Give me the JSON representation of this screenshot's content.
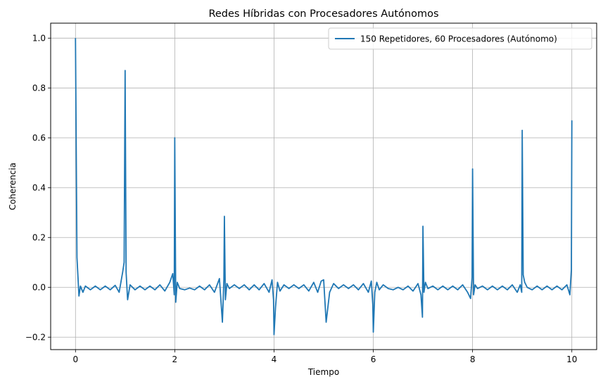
{
  "chart_data": {
    "type": "line",
    "title": "Redes Híbridas con Procesadores Autónomos",
    "xlabel": "Tiempo",
    "ylabel": "Coherencia",
    "xlim": [
      -0.5,
      10.5
    ],
    "ylim": [
      -0.25,
      1.06
    ],
    "xticks": [
      0,
      2,
      4,
      6,
      8,
      10
    ],
    "xtick_labels": [
      "0",
      "2",
      "4",
      "6",
      "8",
      "10"
    ],
    "yticks": [
      -0.2,
      0.0,
      0.2,
      0.4,
      0.6,
      0.8,
      1.0
    ],
    "ytick_labels": [
      "−0.2",
      "0.0",
      "0.2",
      "0.4",
      "0.6",
      "0.8",
      "1.0"
    ],
    "grid": true,
    "legend_position": "top-right",
    "series": [
      {
        "name": "150 Repetidores, 60 Procesadores (Autónomo)",
        "color": "#1f77b4",
        "x": [
          0,
          0.03,
          0.07,
          0.1,
          0.15,
          0.2,
          0.3,
          0.4,
          0.5,
          0.6,
          0.7,
          0.8,
          0.88,
          0.95,
          0.98,
          1.0,
          1.02,
          1.05,
          1.1,
          1.2,
          1.3,
          1.4,
          1.5,
          1.6,
          1.7,
          1.8,
          1.9,
          1.96,
          1.99,
          2.0,
          2.02,
          2.05,
          2.1,
          2.2,
          2.3,
          2.4,
          2.5,
          2.6,
          2.7,
          2.8,
          2.9,
          2.96,
          2.99,
          3.0,
          3.02,
          3.05,
          3.1,
          3.2,
          3.3,
          3.4,
          3.5,
          3.6,
          3.7,
          3.8,
          3.9,
          3.96,
          3.99,
          4.0,
          4.03,
          4.07,
          4.12,
          4.2,
          4.3,
          4.4,
          4.5,
          4.6,
          4.7,
          4.8,
          4.88,
          4.95,
          5.0,
          5.05,
          5.12,
          5.2,
          5.3,
          5.4,
          5.5,
          5.6,
          5.7,
          5.8,
          5.9,
          5.96,
          5.99,
          6.0,
          6.03,
          6.07,
          6.12,
          6.2,
          6.3,
          6.4,
          6.5,
          6.6,
          6.7,
          6.8,
          6.9,
          6.96,
          6.99,
          7.0,
          7.02,
          7.05,
          7.1,
          7.2,
          7.3,
          7.4,
          7.5,
          7.6,
          7.7,
          7.8,
          7.9,
          7.96,
          7.99,
          8.0,
          8.02,
          8.05,
          8.1,
          8.2,
          8.3,
          8.4,
          8.5,
          8.6,
          8.7,
          8.8,
          8.9,
          8.96,
          8.99,
          9.0,
          9.02,
          9.05,
          9.1,
          9.2,
          9.3,
          9.4,
          9.5,
          9.6,
          9.7,
          9.8,
          9.9,
          9.96,
          9.99,
          10.0
        ],
        "y": [
          1.0,
          0.12,
          -0.035,
          0.005,
          -0.02,
          0.005,
          -0.01,
          0.005,
          -0.01,
          0.005,
          -0.01,
          0.008,
          -0.02,
          0.06,
          0.1,
          0.87,
          0.06,
          -0.05,
          0.01,
          -0.01,
          0.005,
          -0.01,
          0.005,
          -0.01,
          0.01,
          -0.015,
          0.02,
          0.055,
          -0.03,
          0.6,
          -0.06,
          0.02,
          -0.005,
          -0.01,
          -0.003,
          -0.01,
          0.005,
          -0.01,
          0.01,
          -0.02,
          0.035,
          -0.14,
          0.03,
          0.285,
          -0.05,
          0.015,
          -0.005,
          0.01,
          -0.005,
          0.01,
          -0.01,
          0.01,
          -0.01,
          0.015,
          -0.02,
          0.03,
          -0.05,
          -0.19,
          -0.08,
          0.02,
          -0.015,
          0.01,
          -0.005,
          0.01,
          -0.005,
          0.01,
          -0.015,
          0.02,
          -0.02,
          0.025,
          0.03,
          -0.14,
          -0.02,
          0.015,
          -0.005,
          0.01,
          -0.005,
          0.01,
          -0.01,
          0.015,
          -0.02,
          0.025,
          -0.07,
          -0.18,
          -0.02,
          0.02,
          -0.01,
          0.01,
          -0.005,
          -0.01,
          0.0,
          -0.01,
          0.005,
          -0.015,
          0.015,
          -0.03,
          -0.12,
          0.245,
          -0.02,
          0.02,
          -0.005,
          0.005,
          -0.01,
          0.005,
          -0.01,
          0.005,
          -0.01,
          0.01,
          -0.02,
          -0.045,
          0.04,
          0.475,
          -0.03,
          0.01,
          -0.005,
          0.005,
          -0.01,
          0.005,
          -0.01,
          0.005,
          -0.01,
          0.01,
          -0.02,
          0.01,
          -0.02,
          0.63,
          0.05,
          0.02,
          0.0,
          -0.01,
          0.005,
          -0.01,
          0.005,
          -0.01,
          0.005,
          -0.01,
          0.01,
          -0.03,
          0.07,
          0.67
        ]
      }
    ]
  }
}
